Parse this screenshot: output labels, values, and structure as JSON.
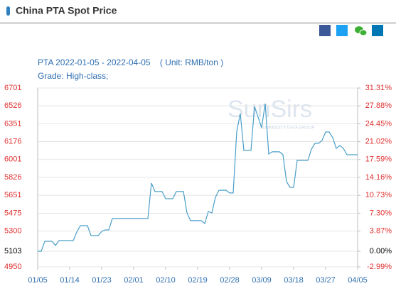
{
  "header": {
    "title": "China PTA Spot Price"
  },
  "chart_data": {
    "type": "line",
    "title": "PTA 2022-01-05 - 2022-04-05    ( Unit: RMB/ton )",
    "subtitle": "Grade: High-class;",
    "watermark": "SunSirs",
    "watermark_sub": "COMMODITY DATA GROUP",
    "x": [
      "01/05",
      "01/06",
      "01/07",
      "01/08",
      "01/09",
      "01/10",
      "01/11",
      "01/12",
      "01/13",
      "01/14",
      "01/15",
      "01/16",
      "01/17",
      "01/18",
      "01/19",
      "01/20",
      "01/21",
      "01/22",
      "01/23",
      "01/24",
      "01/25",
      "01/26",
      "01/27",
      "01/28",
      "01/29",
      "01/30",
      "01/31",
      "02/01",
      "02/02",
      "02/03",
      "02/04",
      "02/05",
      "02/06",
      "02/07",
      "02/08",
      "02/09",
      "02/10",
      "02/11",
      "02/12",
      "02/13",
      "02/14",
      "02/15",
      "02/16",
      "02/17",
      "02/18",
      "02/19",
      "02/20",
      "02/21",
      "02/22",
      "02/23",
      "02/24",
      "02/25",
      "02/26",
      "02/27",
      "02/28",
      "03/01",
      "03/02",
      "03/03",
      "03/04",
      "03/05",
      "03/06",
      "03/07",
      "03/08",
      "03/09",
      "03/10",
      "03/11",
      "03/12",
      "03/13",
      "03/14",
      "03/15",
      "03/16",
      "03/17",
      "03/18",
      "03/19",
      "03/20",
      "03/21",
      "03/22",
      "03/23",
      "03/24",
      "03/25",
      "03/26",
      "03/27",
      "03/28",
      "03/29",
      "03/30",
      "03/31",
      "04/01",
      "04/02",
      "04/03",
      "04/04",
      "04/05"
    ],
    "series": [
      {
        "name": "PTA",
        "color": "#4a9fc8",
        "values": [
          5103,
          5103,
          5200,
          5200,
          5200,
          5159,
          5207,
          5207,
          5207,
          5207,
          5207,
          5291,
          5353,
          5353,
          5353,
          5256,
          5256,
          5256,
          5297,
          5311,
          5311,
          5423,
          5423,
          5423,
          5423,
          5423,
          5423,
          5423,
          5423,
          5423,
          5423,
          5423,
          5770,
          5687,
          5687,
          5687,
          5617,
          5617,
          5617,
          5687,
          5687,
          5687,
          5478,
          5402,
          5402,
          5402,
          5402,
          5374,
          5492,
          5478,
          5631,
          5700,
          5700,
          5700,
          5673,
          5673,
          6277,
          6451,
          6090,
          6090,
          6090,
          6520,
          6416,
          6312,
          6548,
          6055,
          6076,
          6076,
          6076,
          6048,
          5784,
          5728,
          5728,
          5992,
          5992,
          5992,
          5992,
          6103,
          6159,
          6159,
          6187,
          6270,
          6270,
          6215,
          6110,
          6138,
          6110,
          6048,
          6048,
          6048,
          6048
        ]
      }
    ],
    "xlim": [
      "01/05",
      "04/05"
    ],
    "xticks": [
      "01/05",
      "01/14",
      "01/23",
      "02/01",
      "02/10",
      "02/19",
      "02/28",
      "03/09",
      "03/18",
      "03/27",
      "04/05"
    ],
    "ylim": [
      4950,
      6701
    ],
    "yticks": [
      6701,
      6526,
      6351,
      6176,
      6001,
      5826,
      5651,
      5475,
      5300,
      5103,
      4950
    ],
    "y2lim": [
      -2.99,
      31.31
    ],
    "y2ticks": [
      {
        "value": 31.31,
        "label": "31.31%"
      },
      {
        "value": 27.88,
        "label": "27.88%"
      },
      {
        "value": 24.45,
        "label": "24.45%"
      },
      {
        "value": 21.02,
        "label": "21.02%"
      },
      {
        "value": 17.59,
        "label": "17.59%"
      },
      {
        "value": 14.16,
        "label": "14.16%"
      },
      {
        "value": 10.73,
        "label": "10.73%"
      },
      {
        "value": 7.3,
        "label": "7.30%"
      },
      {
        "value": 3.87,
        "label": "3.87%"
      },
      {
        "value": 0,
        "label": "0.00%"
      },
      {
        "value": -2.99,
        "label": "-2.99%"
      }
    ],
    "grid": true,
    "tick_color": "#e03030",
    "base_color": "#000000"
  }
}
